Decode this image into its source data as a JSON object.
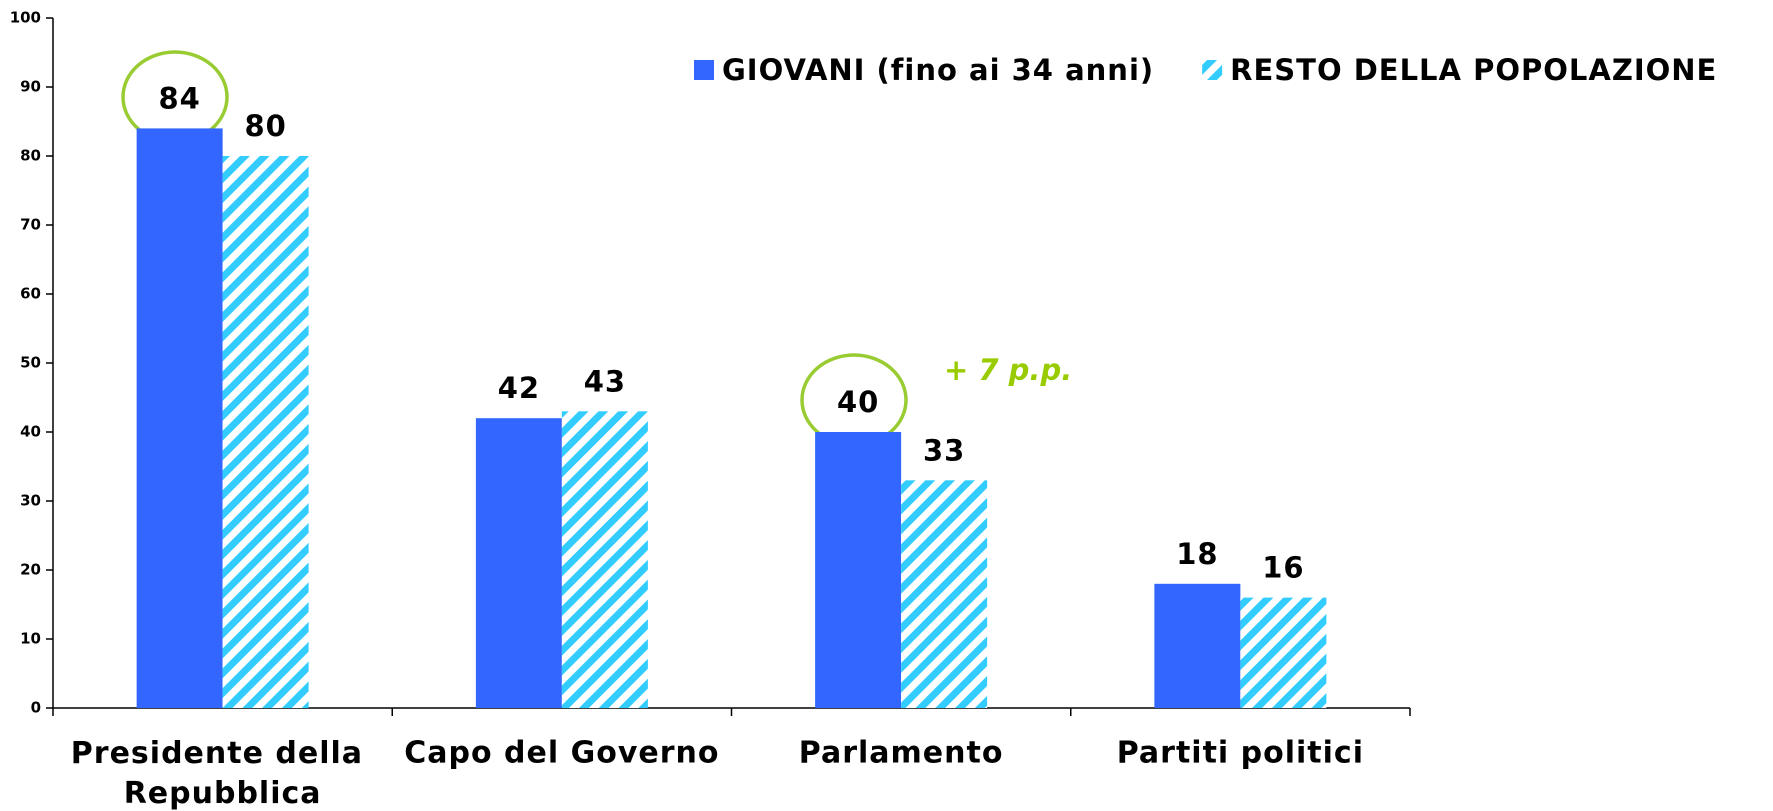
{
  "chart_data": {
    "type": "bar",
    "categories": [
      "Presidente della Repubblica",
      "Capo del Governo",
      "Parlamento",
      "Partiti politici"
    ],
    "series": [
      {
        "name": "GIOVANI (fino ai 34 anni)",
        "color": "#3366ff",
        "values": [
          84,
          42,
          40,
          18
        ]
      },
      {
        "name": "RESTO DELLA POPOLAZIONE",
        "color": "#33ccff",
        "hatch": true,
        "values": [
          80,
          43,
          33,
          16
        ]
      }
    ],
    "ylim": [
      0,
      100
    ],
    "yticks": [
      0,
      10,
      20,
      30,
      40,
      50,
      60,
      70,
      80,
      90,
      100
    ],
    "grid": false,
    "legend": "top-right",
    "annotations": [
      {
        "text": "+ 7 p.p.",
        "color": "#99cc00"
      }
    ]
  }
}
